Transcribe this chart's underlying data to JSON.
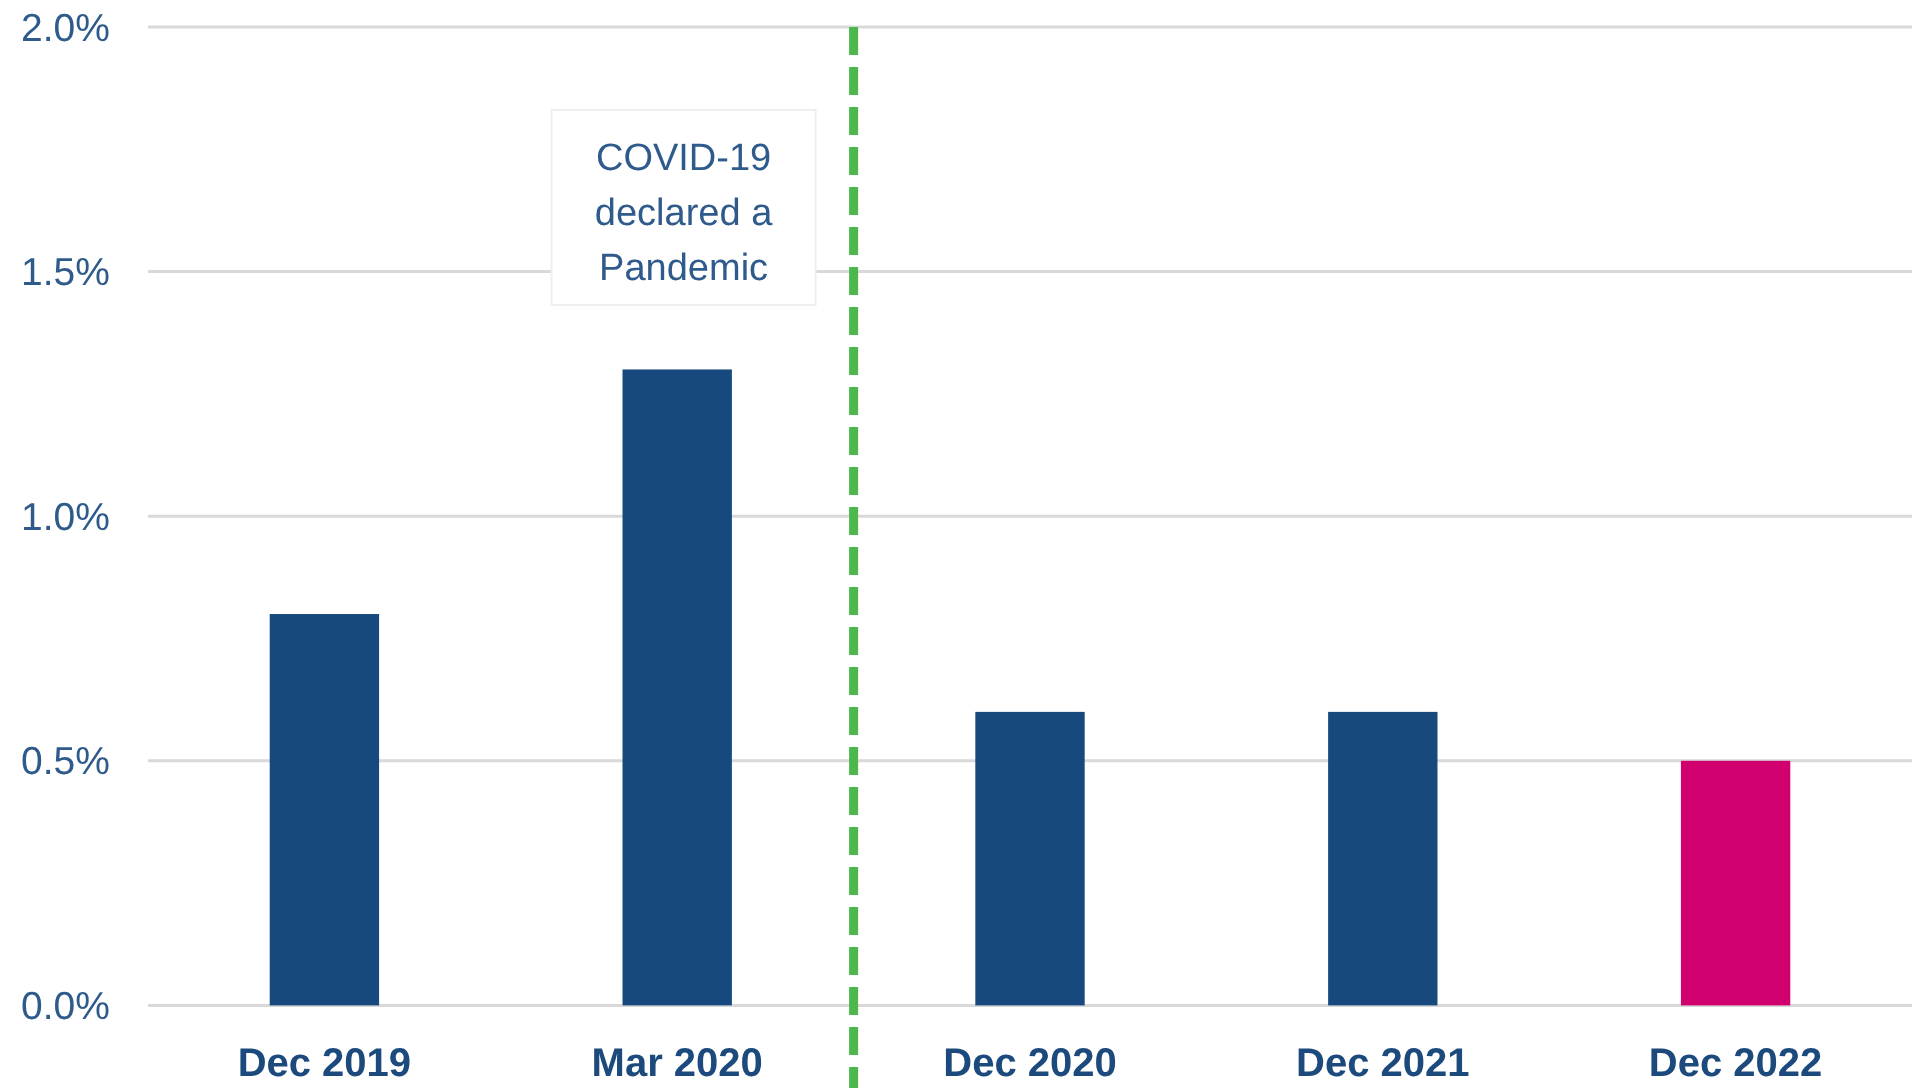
{
  "chart_data": {
    "type": "bar",
    "categories": [
      "Dec 2019",
      "Mar 2020",
      "Dec 2020",
      "Dec 2021",
      "Dec 2022"
    ],
    "values": [
      0.8,
      1.3,
      0.6,
      0.6,
      0.5
    ],
    "colors": [
      "#17497e",
      "#17497e",
      "#17497e",
      "#17497e",
      "#d0006f"
    ],
    "ylim": [
      0,
      2
    ],
    "yticks": [
      {
        "value": 0,
        "label": "0.0%"
      },
      {
        "value": 0.5,
        "label": "0.5%"
      },
      {
        "value": 1,
        "label": "1.0%"
      },
      {
        "value": 1.5,
        "label": "1.5%"
      },
      {
        "value": 2,
        "label": "2.0%"
      }
    ],
    "grid": "y",
    "annotations": [
      "COVID-19 declared a Pandemic"
    ]
  }
}
